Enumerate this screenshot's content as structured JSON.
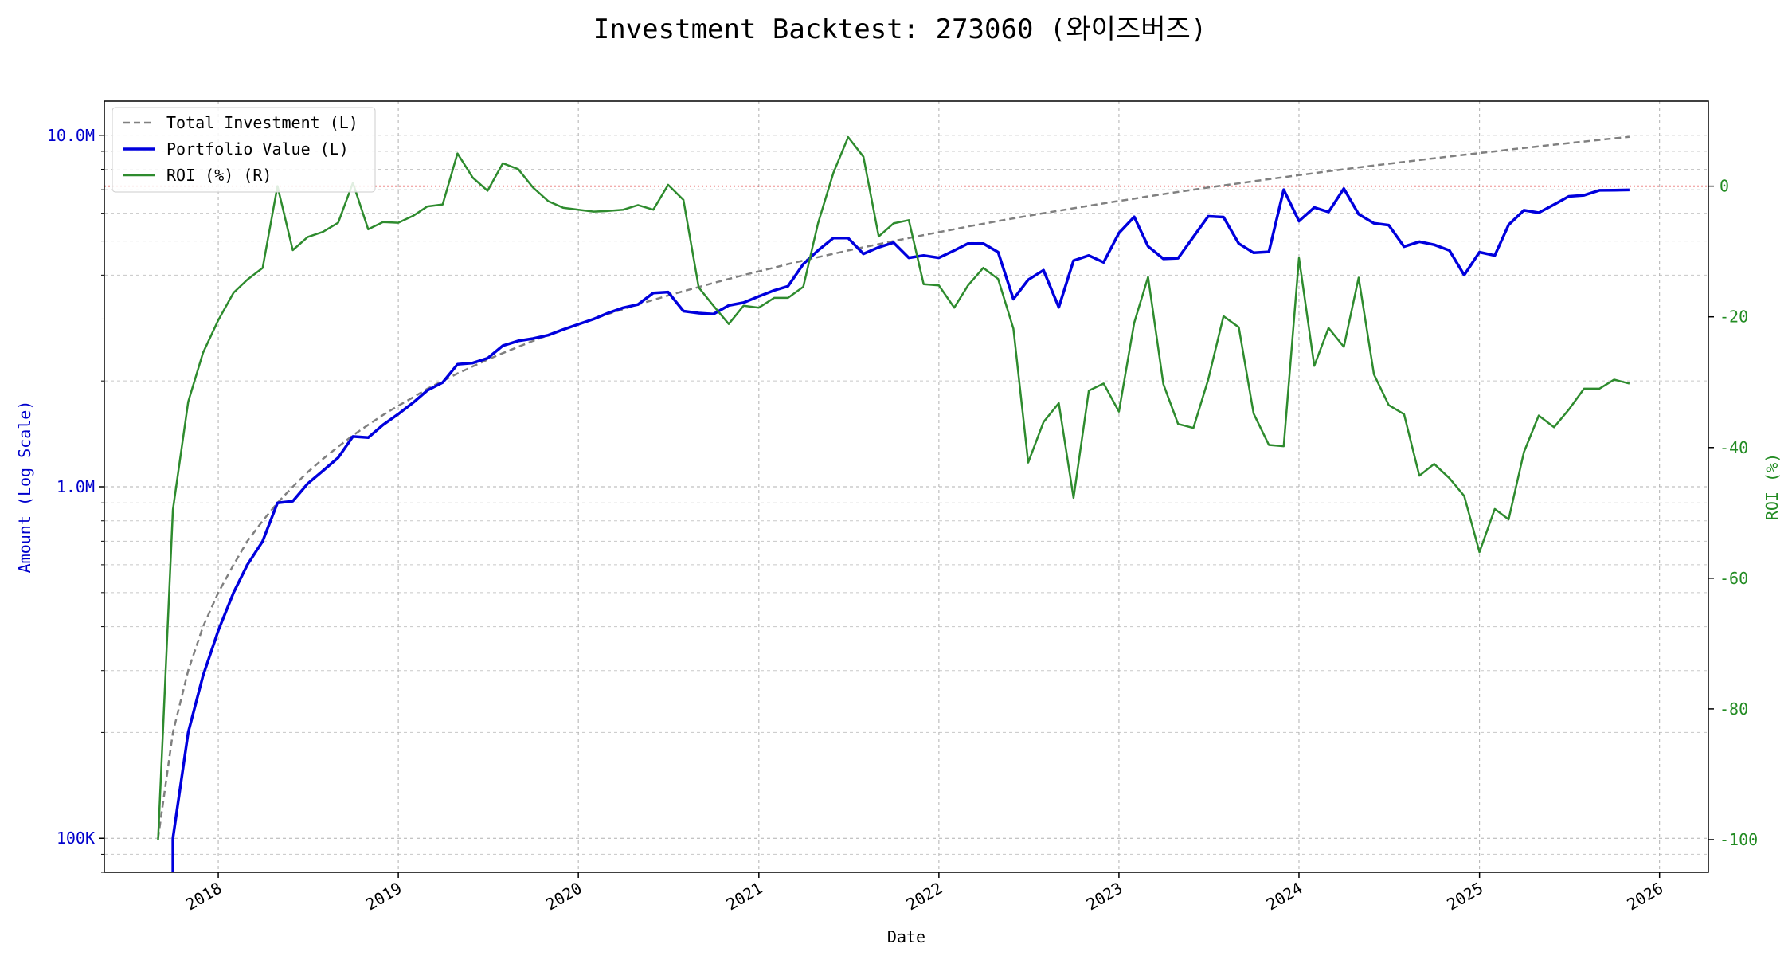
{
  "chart_data": {
    "type": "line",
    "title": "Investment Backtest: 273060 (와이즈버즈)",
    "xlabel": "Date",
    "ylabel_left": "Amount (Log Scale)",
    "ylabel_right": "ROI (%)",
    "x_ticks": [
      "2018",
      "2019",
      "2020",
      "2021",
      "2022",
      "2023",
      "2024",
      "2025",
      "2026"
    ],
    "y_left_scale": "log",
    "y_left_lim": [
      80000,
      12500000
    ],
    "y_left_ticks": [
      "100K",
      "1.0M",
      "10.0M"
    ],
    "y_right_lim": [
      -105,
      13
    ],
    "y_right_ticks": [
      "-100",
      "-80",
      "-60",
      "-40",
      "-20",
      "0"
    ],
    "x_range": [
      "2017-05-15",
      "2026-04-10"
    ],
    "grid": true,
    "legend_position": "top-left",
    "colors": {
      "total_investment": "#808080",
      "portfolio_value": "#0000dd",
      "roi": "#2e8b2e",
      "zero_line": "#dd2222",
      "left_axis": "#0000cc",
      "right_axis": "#228b22"
    },
    "series": [
      {
        "name": "Total Investment (L)",
        "axis": "left",
        "style": "dashed",
        "x": [
          "2017-09-01",
          "2017-10-01",
          "2017-11-01",
          "2017-12-01",
          "2018-01-01",
          "2018-02-01",
          "2018-03-01",
          "2018-04-01",
          "2018-05-01",
          "2018-06-01",
          "2018-07-01",
          "2018-08-01",
          "2018-09-01",
          "2018-10-01",
          "2018-11-01",
          "2018-12-01",
          "2019-01-01",
          "2019-02-01",
          "2019-03-01",
          "2019-04-01",
          "2019-05-01",
          "2019-06-01",
          "2019-07-01",
          "2019-08-01",
          "2019-09-01",
          "2019-10-01",
          "2019-11-01",
          "2019-12-01",
          "2020-01-01",
          "2020-02-01",
          "2020-03-01",
          "2020-04-01",
          "2020-05-01",
          "2020-06-01",
          "2020-07-01",
          "2020-08-01",
          "2020-09-01",
          "2020-10-01",
          "2020-11-01",
          "2020-12-01",
          "2021-01-01",
          "2021-02-01",
          "2021-03-01",
          "2021-04-01",
          "2021-05-01",
          "2021-06-01",
          "2021-07-01",
          "2021-08-01",
          "2021-09-01",
          "2021-10-01",
          "2021-11-01",
          "2021-12-01",
          "2022-01-01",
          "2022-02-01",
          "2022-03-01",
          "2022-04-01",
          "2022-05-01",
          "2022-06-01",
          "2022-07-01",
          "2022-08-01",
          "2022-09-01",
          "2022-10-01",
          "2022-11-01",
          "2022-12-01",
          "2023-01-01",
          "2023-02-01",
          "2023-03-01",
          "2023-04-01",
          "2023-05-01",
          "2023-06-01",
          "2023-07-01",
          "2023-08-01",
          "2023-09-01",
          "2023-10-01",
          "2023-11-01",
          "2023-12-01",
          "2024-01-01",
          "2024-02-01",
          "2024-03-01",
          "2024-04-01",
          "2024-05-01",
          "2024-06-01",
          "2024-07-01",
          "2024-08-01",
          "2024-09-01",
          "2024-10-01",
          "2024-11-01",
          "2024-12-01",
          "2025-01-01",
          "2025-02-01",
          "2025-03-01",
          "2025-04-01",
          "2025-05-01",
          "2025-06-01",
          "2025-07-01",
          "2025-08-01",
          "2025-09-01",
          "2025-10-01",
          "2025-11-01"
        ],
        "values": [
          100000,
          200000,
          300000,
          400000,
          500000,
          600000,
          700000,
          800000,
          900000,
          1000000,
          1100000,
          1200000,
          1300000,
          1400000,
          1500000,
          1600000,
          1700000,
          1800000,
          1900000,
          2000000,
          2100000,
          2200000,
          2300000,
          2400000,
          2500000,
          2600000,
          2700000,
          2800000,
          2900000,
          3000000,
          3100000,
          3200000,
          3300000,
          3400000,
          3500000,
          3600000,
          3700000,
          3800000,
          3900000,
          4000000,
          4100000,
          4200000,
          4300000,
          4400000,
          4500000,
          4600000,
          4700000,
          4800000,
          4900000,
          5000000,
          5100000,
          5200000,
          5300000,
          5400000,
          5500000,
          5600000,
          5700000,
          5800000,
          5900000,
          6000000,
          6100000,
          6200000,
          6300000,
          6400000,
          6500000,
          6600000,
          6700000,
          6800000,
          6900000,
          7000000,
          7100000,
          7200000,
          7300000,
          7400000,
          7500000,
          7600000,
          7700000,
          7800000,
          7900000,
          8000000,
          8100000,
          8200000,
          8300000,
          8400000,
          8500000,
          8600000,
          8700000,
          8800000,
          8900000,
          9000000,
          9100000,
          9200000,
          9300000,
          9400000,
          9500000,
          9600000,
          9700000,
          9800000,
          9900000
        ]
      },
      {
        "name": "Portfolio Value (L)",
        "axis": "left",
        "style": "solid",
        "x": [
          "2017-10-01",
          "2017-11-01",
          "2017-12-01",
          "2018-01-01",
          "2018-02-01",
          "2018-03-01",
          "2018-04-01",
          "2018-05-01",
          "2018-06-01",
          "2018-07-01",
          "2018-08-01",
          "2018-09-01",
          "2018-10-01",
          "2018-11-01",
          "2018-12-01",
          "2019-01-01",
          "2019-02-01",
          "2019-03-01",
          "2019-04-01",
          "2019-05-01",
          "2019-06-01",
          "2019-07-01",
          "2019-08-01",
          "2019-09-01",
          "2019-10-01",
          "2019-11-01",
          "2019-12-01",
          "2020-01-01",
          "2020-02-01",
          "2020-03-01",
          "2020-04-01",
          "2020-05-01",
          "2020-06-01",
          "2020-07-01",
          "2020-08-01",
          "2020-09-01",
          "2020-10-01",
          "2020-11-01",
          "2020-12-01",
          "2021-01-01",
          "2021-02-01",
          "2021-03-01",
          "2021-04-01",
          "2021-05-01",
          "2021-06-01",
          "2021-07-01",
          "2021-08-01",
          "2021-09-01",
          "2021-10-01",
          "2021-11-01",
          "2021-12-01",
          "2022-01-01",
          "2022-02-01",
          "2022-03-01",
          "2022-04-01",
          "2022-05-01",
          "2022-06-01",
          "2022-07-01",
          "2022-08-01",
          "2022-09-01",
          "2022-10-01",
          "2022-11-01",
          "2022-12-01",
          "2023-01-01",
          "2023-02-01",
          "2023-03-01",
          "2023-04-01",
          "2023-05-01",
          "2023-06-01",
          "2023-07-01",
          "2023-08-01",
          "2023-09-01",
          "2023-10-01",
          "2023-11-01",
          "2023-12-01",
          "2024-01-01",
          "2024-02-01",
          "2024-03-01",
          "2024-04-01",
          "2024-05-01",
          "2024-06-01",
          "2024-07-01",
          "2024-08-01",
          "2024-09-01",
          "2024-10-01",
          "2024-11-01",
          "2024-12-01",
          "2025-01-01",
          "2025-02-01",
          "2025-03-01",
          "2025-04-01",
          "2025-05-01",
          "2025-06-01",
          "2025-07-01",
          "2025-08-01",
          "2025-09-01",
          "2025-10-01",
          "2025-11-01"
        ],
        "values": [
          100000,
          200000,
          290000,
          390000,
          500000,
          600000,
          700000,
          900000,
          910000,
          1020000,
          1110000,
          1210000,
          1390000,
          1380000,
          1500000,
          1610000,
          1740000,
          1880000,
          1980000,
          2230000,
          2250000,
          2320000,
          2520000,
          2600000,
          2640000,
          2700000,
          2800000,
          2900000,
          3000000,
          3120000,
          3230000,
          3300000,
          3560000,
          3580000,
          3160000,
          3120000,
          3100000,
          3280000,
          3340000,
          3480000,
          3620000,
          3720000,
          4300000,
          4700000,
          5100000,
          5100000,
          4600000,
          4800000,
          4950000,
          4480000,
          4550000,
          4480000,
          4700000,
          4920000,
          4920000,
          4650000,
          3420000,
          3880000,
          4130000,
          3240000,
          4400000,
          4550000,
          4350000,
          5270000,
          5860000,
          4830000,
          4450000,
          4470000,
          5140000,
          5880000,
          5850000,
          4920000,
          4630000,
          4660000,
          7000000,
          5700000,
          6230000,
          6050000,
          7050000,
          5960000,
          5620000,
          5550000,
          4820000,
          4980000,
          4880000,
          4700000,
          4000000,
          4650000,
          4550000,
          5560000,
          6120000,
          6020000,
          6350000,
          6700000,
          6750000,
          6970000,
          6980000,
          6990000
        ]
      },
      {
        "name": "ROI (%) (R)",
        "axis": "right",
        "style": "solid",
        "x": [
          "2017-09-01",
          "2017-10-01",
          "2017-11-01",
          "2017-12-01",
          "2018-01-01",
          "2018-02-01",
          "2018-03-01",
          "2018-04-01",
          "2018-05-01",
          "2018-06-01",
          "2018-07-01",
          "2018-08-01",
          "2018-09-01",
          "2018-10-01",
          "2018-11-01",
          "2018-12-01",
          "2019-01-01",
          "2019-02-01",
          "2019-03-01",
          "2019-04-01",
          "2019-05-01",
          "2019-06-01",
          "2019-07-01",
          "2019-08-01",
          "2019-09-01",
          "2019-10-01",
          "2019-11-01",
          "2019-12-01",
          "2020-01-01",
          "2020-02-01",
          "2020-03-01",
          "2020-04-01",
          "2020-05-01",
          "2020-06-01",
          "2020-07-01",
          "2020-08-01",
          "2020-09-01",
          "2020-10-01",
          "2020-11-01",
          "2020-12-01",
          "2021-01-01",
          "2021-02-01",
          "2021-03-01",
          "2021-04-01",
          "2021-05-01",
          "2021-06-01",
          "2021-07-01",
          "2021-08-01",
          "2021-09-01",
          "2021-10-01",
          "2021-11-01",
          "2021-12-01",
          "2022-01-01",
          "2022-02-01",
          "2022-03-01",
          "2022-04-01",
          "2022-05-01",
          "2022-06-01",
          "2022-07-01",
          "2022-08-01",
          "2022-09-01",
          "2022-10-01",
          "2022-11-01",
          "2022-12-01",
          "2023-01-01",
          "2023-02-01",
          "2023-03-01",
          "2023-04-01",
          "2023-05-01",
          "2023-06-01",
          "2023-07-01",
          "2023-08-01",
          "2023-09-01",
          "2023-10-01",
          "2023-11-01",
          "2023-12-01",
          "2024-01-01",
          "2024-02-01",
          "2024-03-01",
          "2024-04-01",
          "2024-05-01",
          "2024-06-01",
          "2024-07-01",
          "2024-08-01",
          "2024-09-01",
          "2024-10-01",
          "2024-11-01",
          "2024-12-01",
          "2025-01-01",
          "2025-02-01",
          "2025-03-01",
          "2025-04-01",
          "2025-05-01",
          "2025-06-01",
          "2025-07-01",
          "2025-08-01",
          "2025-09-01",
          "2025-10-01",
          "2025-11-01"
        ],
        "values": [
          -100,
          -49.5,
          -33,
          -25.5,
          -20.5,
          -16.3,
          -14.3,
          -12.5,
          0,
          -9.8,
          -7.8,
          -7,
          -5.6,
          0.5,
          -6.6,
          -5.5,
          -5.6,
          -4.5,
          -3.1,
          -2.8,
          5,
          1.3,
          -0.7,
          3.5,
          2.6,
          -0.2,
          -2.3,
          -3.3,
          -3.6,
          -3.9,
          -3.8,
          -3.6,
          -2.9,
          -3.6,
          0.2,
          -2.1,
          -15.5,
          -18.3,
          -21.1,
          -18.3,
          -18.6,
          -17.1,
          -17.1,
          -15.4,
          -5.7,
          2,
          7.5,
          4.5,
          -7.7,
          -5.7,
          -5.2,
          -15,
          -15.2,
          -18.6,
          -15.2,
          -12.5,
          -14.2,
          -21.8,
          -42.3,
          -36.1,
          -33.2,
          -47.7,
          -31.3,
          -30.2,
          -34.5,
          -20.9,
          -13.9,
          -30.3,
          -36.4,
          -37,
          -29.6,
          -19.9,
          -21.6,
          -34.8,
          -39.6,
          -39.8,
          -11,
          -27.5,
          -21.7,
          -24.6,
          -14,
          -28.8,
          -33.5,
          -34.9,
          -44.3,
          -42.5,
          -44.7,
          -47.4,
          -56,
          -49.4,
          -51,
          -40.7,
          -35.1,
          -36.9,
          -34.2,
          -31,
          -31,
          -29.6,
          -30.2
        ]
      }
    ],
    "reference_line": {
      "axis": "right",
      "value": 0,
      "style": "dotted"
    }
  }
}
